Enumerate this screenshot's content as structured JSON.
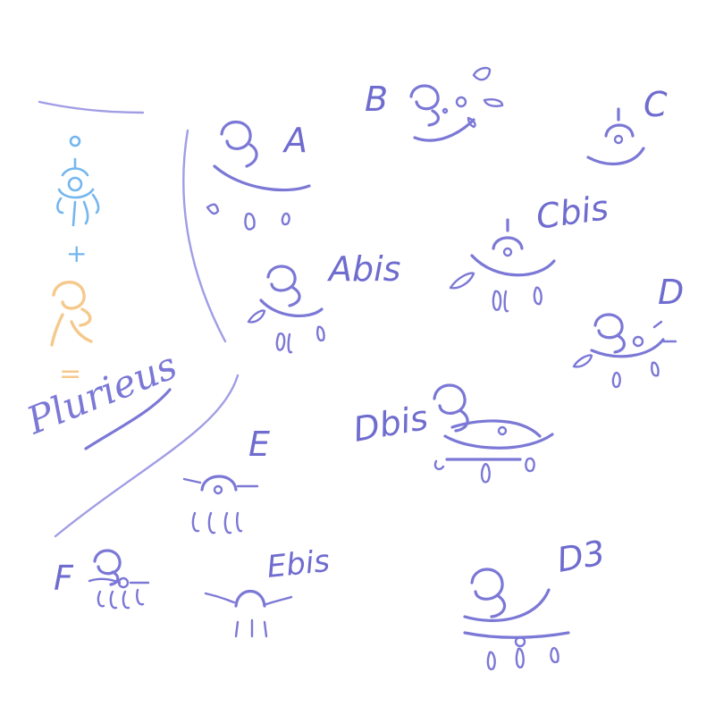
{
  "labels": {
    "a": "A",
    "b": "B",
    "c": "C",
    "abis": "Abis",
    "cbis": "Cbis",
    "d": "D",
    "dbis": "Dbis",
    "e": "E",
    "ebis": "Ebis",
    "d3": "D3",
    "f": "F"
  },
  "legend": {
    "plus": "+",
    "equals": "=",
    "word": "Plurieus"
  },
  "colors": {
    "ink": "#7b78d6",
    "blue": "#74b6ee",
    "orange": "#f5c98c",
    "background": "#ffffff"
  }
}
